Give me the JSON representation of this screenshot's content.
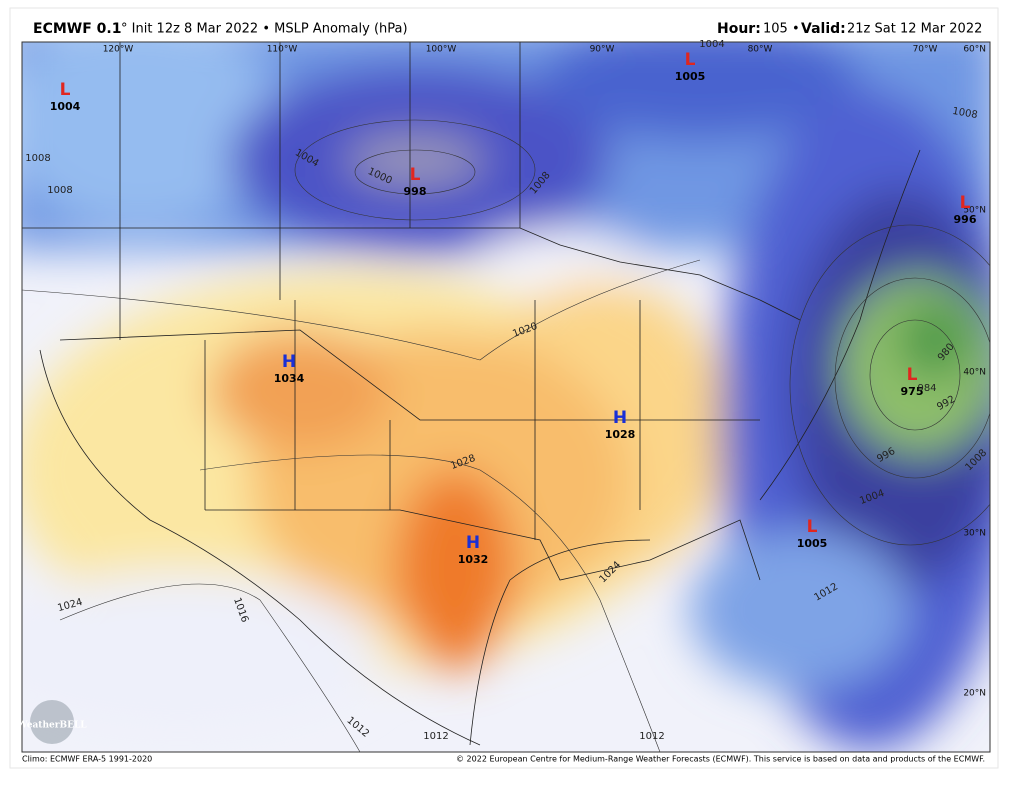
{
  "header": {
    "model": "ECMWF 0.1",
    "details": "° Init 12z 8 Mar 2022 • MSLP Anomaly (hPa)",
    "hour_label": "Hour:",
    "hour": "105 •",
    "valid_label": "Valid:",
    "valid": "21z Sat 12 Mar 2022"
  },
  "map": {
    "longitude_labels": [
      "120°W",
      "110°W",
      "100°W",
      "90°W",
      "80°W",
      "70°W"
    ],
    "latitude_labels": [
      "60°N",
      "50°N",
      "40°N",
      "30°N",
      "20°N"
    ],
    "centers": [
      {
        "kind": "L",
        "value": 1004
      },
      {
        "kind": "L",
        "value": 998
      },
      {
        "kind": "L",
        "value": 1005
      },
      {
        "kind": "L",
        "value": 996
      },
      {
        "kind": "L",
        "value": 975
      },
      {
        "kind": "L",
        "value": 1005
      },
      {
        "kind": "H",
        "value": 1034
      },
      {
        "kind": "H",
        "value": 1028
      },
      {
        "kind": "H",
        "value": 1032
      }
    ],
    "contour_labels": [
      1004,
      1000,
      1008,
      1008,
      1008,
      1008,
      1004,
      1020,
      1028,
      1024,
      1024,
      1012,
      1016,
      1012,
      1012,
      1012,
      992,
      996,
      1004,
      1008,
      980,
      984
    ],
    "logo": "WeatherBELL"
  },
  "footer": {
    "climo": "Climo: ECMWF ERA-5 1991-2020",
    "copyright": "© 2022 European Centre for Medium-Range Weather Forecasts (ECMWF). This service is based on data and products of the ECMWF."
  }
}
